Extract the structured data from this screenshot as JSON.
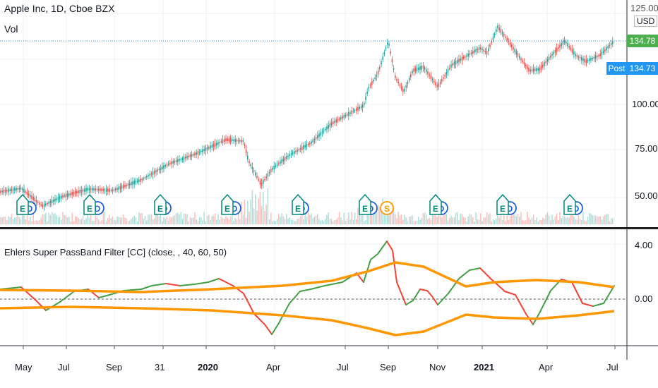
{
  "header": {
    "symbol_title": "Apple Inc, 1D, Cboe BZX",
    "volume_label": "Vol",
    "currency": "USD"
  },
  "price_axis": {
    "ticks": [
      "125.00",
      "100.00",
      "75.00",
      "50.00"
    ],
    "last_price": "134.78",
    "post_label": "Post",
    "post_price": "134.73"
  },
  "indicator": {
    "title": "Ehlers Super PassBand Filter [CC] (close, , 40, 60, 50)",
    "axis_ticks": [
      "4.00",
      "0.00"
    ]
  },
  "time_axis": {
    "labels": [
      "May",
      "Jul",
      "Sep",
      "31",
      "2020",
      "Apr",
      "Jul",
      "Sep",
      "Nov",
      "2021",
      "Apr",
      "Jul"
    ],
    "bold": [
      false,
      false,
      false,
      false,
      true,
      false,
      false,
      false,
      false,
      true,
      false,
      false
    ]
  },
  "events": {
    "earnings_marker": "E",
    "dividend_marker": "D",
    "split_marker": "S"
  },
  "colors": {
    "up": "#26a69a",
    "down": "#ef5350",
    "filter_up": "#43a047",
    "filter_down": "#f44336",
    "bands": "#ff9800",
    "last_price_bg": "#4caf50",
    "post_bg": "#2196f3",
    "earnings": "#00897b",
    "dividend": "#1e63d6",
    "split": "#ff9800"
  }
}
